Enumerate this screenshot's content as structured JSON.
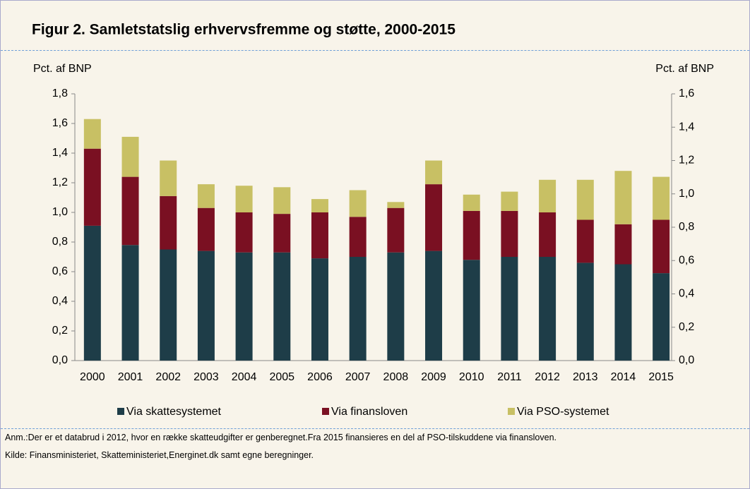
{
  "chart_data": {
    "type": "stacked_bar",
    "title": "Figur 2. Samletstatslig erhvervsfremme  og støtte, 2000-2015",
    "y_label": "Pct. af BNP",
    "y2_label": "Pct. af BNP",
    "categories": [
      "2000",
      "2001",
      "2002",
      "2003",
      "2004",
      "2005",
      "2006",
      "2007",
      "2008",
      "2009",
      "2010",
      "2011",
      "2012",
      "2013",
      "2014",
      "2015"
    ],
    "series": [
      {
        "name": "Via skattesystemet",
        "color": "#1e3d48",
        "values": [
          0.91,
          0.78,
          0.75,
          0.74,
          0.73,
          0.73,
          0.69,
          0.7,
          0.73,
          0.74,
          0.68,
          0.7,
          0.7,
          0.66,
          0.65,
          0.59
        ]
      },
      {
        "name": "Via finansloven",
        "color": "#7a1022",
        "values": [
          0.52,
          0.46,
          0.36,
          0.29,
          0.27,
          0.26,
          0.31,
          0.27,
          0.3,
          0.45,
          0.33,
          0.31,
          0.3,
          0.29,
          0.27,
          0.36
        ]
      },
      {
        "name": "Via PSO-systemet",
        "color": "#c8c064",
        "values": [
          0.2,
          0.27,
          0.24,
          0.16,
          0.18,
          0.18,
          0.09,
          0.18,
          0.04,
          0.16,
          0.11,
          0.13,
          0.22,
          0.27,
          0.36,
          0.29
        ]
      }
    ],
    "ylim": [
      0,
      1.8
    ],
    "yticks": [
      {
        "value": 0,
        "label": "0,0"
      },
      {
        "value": 0.2,
        "label": "0,2"
      },
      {
        "value": 0.4,
        "label": "0,4"
      },
      {
        "value": 0.6,
        "label": "0,6"
      },
      {
        "value": 0.8,
        "label": "0,8"
      },
      {
        "value": 1.0,
        "label": "1,0"
      },
      {
        "value": 1.2,
        "label": "1,2"
      },
      {
        "value": 1.4,
        "label": "1,4"
      },
      {
        "value": 1.6,
        "label": "1,6"
      },
      {
        "value": 1.8,
        "label": "1,8"
      }
    ],
    "y2lim": [
      0,
      1.6
    ],
    "y2ticks": [
      {
        "value": 0,
        "label": "0,0"
      },
      {
        "value": 0.2,
        "label": "0,2"
      },
      {
        "value": 0.4,
        "label": "0,4"
      },
      {
        "value": 0.6,
        "label": "0,6"
      },
      {
        "value": 0.8,
        "label": "0,8"
      },
      {
        "value": 1.0,
        "label": "1,0"
      },
      {
        "value": 1.2,
        "label": "1,2"
      },
      {
        "value": 1.4,
        "label": "1,4"
      },
      {
        "value": 1.6,
        "label": "1,6"
      }
    ],
    "legend": "bottom",
    "notes": [
      "Anm.:Der er et databrud i 2012, hvor en række skatteudgifter er genberegnet.Fra 2015 finansieres en del af PSO-tilskuddene via finansloven.",
      "Kilde: Finansministeriet, Skatteministeriet,Energinet.dk samt egne beregninger."
    ]
  }
}
